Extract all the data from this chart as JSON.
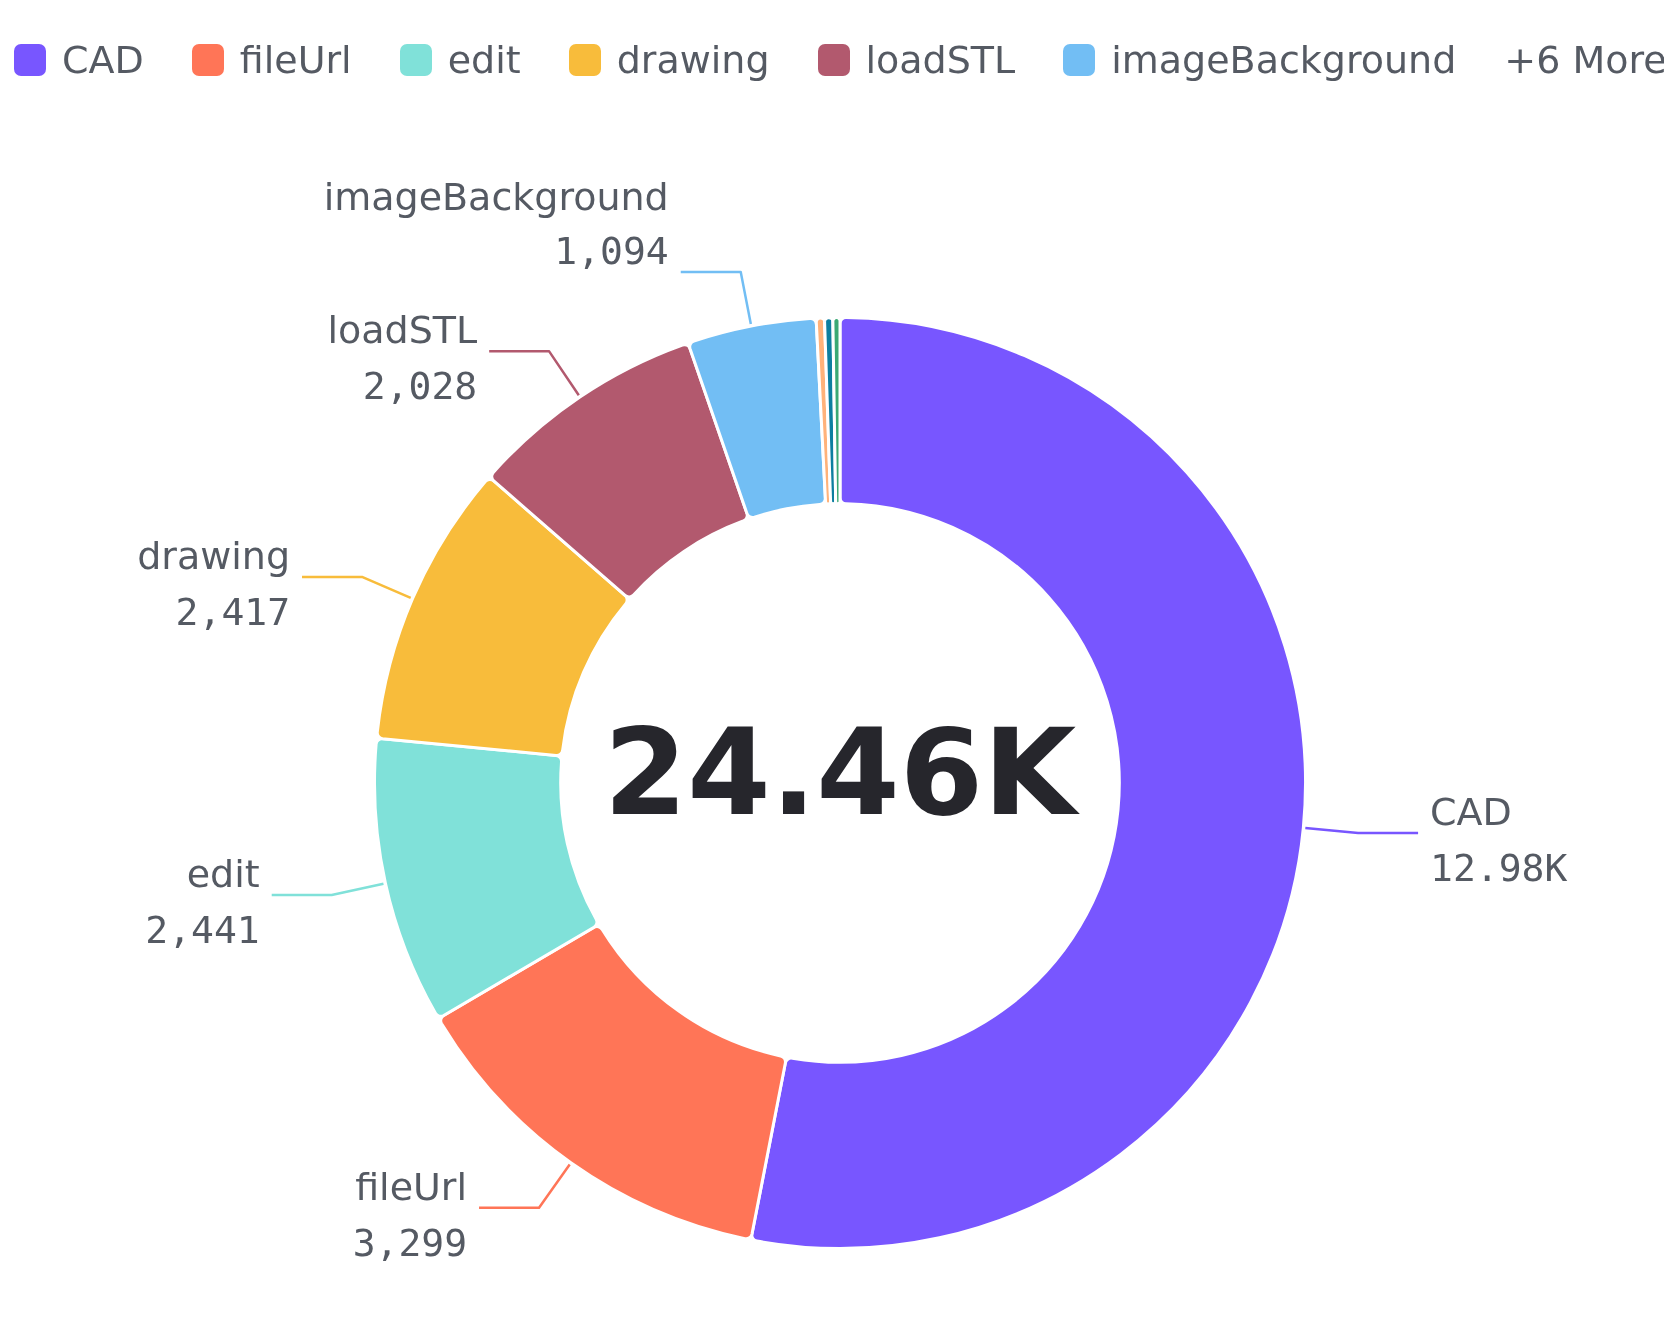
{
  "chart_data": {
    "type": "donut",
    "categories": [
      "CAD",
      "fileUrl",
      "edit",
      "drawing",
      "loadSTL",
      "imageBackground",
      null,
      null,
      null
    ],
    "values": [
      12980,
      3299,
      2441,
      2417,
      2028,
      1094,
      70,
      70,
      60
    ],
    "colors": [
      "#7856ff",
      "#ff7557",
      "#80e1d9",
      "#f8bc3b",
      "#b2596e",
      "#72bef4",
      "#ffb27a",
      "#0d7ea0",
      "#3ba974"
    ],
    "value_labels": [
      "12.98K",
      "3,299",
      "2,441",
      "2,417",
      "2,028",
      "1,094",
      null,
      null,
      null
    ],
    "legend": "top",
    "annotations": [
      "24.46K",
      "+6 More"
    ]
  }
}
